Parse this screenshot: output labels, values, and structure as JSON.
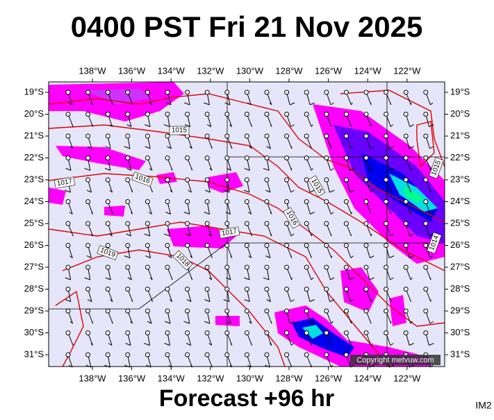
{
  "title": "0400 PST Fri 21 Nov 2025",
  "longitudes": [
    "138°W",
    "136°W",
    "134°W",
    "132°W",
    "130°W",
    "128°W",
    "126°W",
    "124°W",
    "122°W"
  ],
  "latitudes": [
    "19°S",
    "20°S",
    "21°S",
    "22°S",
    "23°S",
    "24°S",
    "25°S",
    "26°S",
    "27°S",
    "28°S",
    "29°S",
    "30°S",
    "31°S"
  ],
  "isobar_labels": [
    "1015",
    "1017",
    "1016",
    "1015",
    "1016",
    "1017",
    "1019",
    "1018",
    "1015",
    "1014"
  ],
  "copyright": "Copyright metvuw.com",
  "forecast": "Forecast +96 hr",
  "image_id": "IM2"
}
